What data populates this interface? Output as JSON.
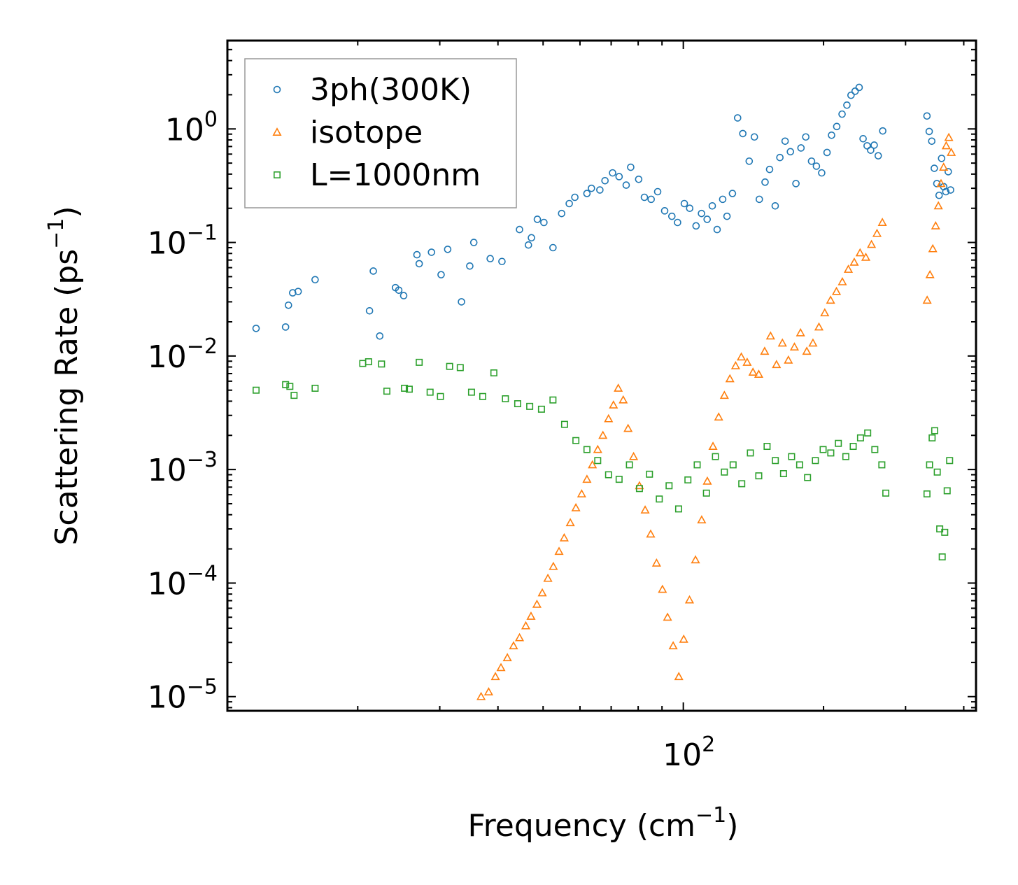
{
  "chart_data": {
    "type": "scatter",
    "title": "",
    "xlabel": "Frequency (cm⁻¹)",
    "xlabel_main": "Frequency (cm",
    "xlabel_sup": "−1",
    "xlabel_close": ")",
    "ylabel": "Scattering Rate (ps⁻¹)",
    "ylabel_main": "Scattering Rate (ps",
    "ylabel_sup": "−1",
    "ylabel_close": ")",
    "xscale": "log",
    "yscale": "log",
    "xlim": [
      10.5,
      425
    ],
    "ylim": [
      7.5e-06,
      6.0
    ],
    "x_ticks": [
      {
        "value": 100,
        "base": "10",
        "exp": "2"
      }
    ],
    "y_ticks": [
      {
        "value": 1,
        "base": "10",
        "exp": "0"
      },
      {
        "value": 0.1,
        "base": "10",
        "exp": "−1"
      },
      {
        "value": 0.01,
        "base": "10",
        "exp": "−2"
      },
      {
        "value": 0.001,
        "base": "10",
        "exp": "−3"
      },
      {
        "value": 0.0001,
        "base": "10",
        "exp": "−4"
      },
      {
        "value": 1e-05,
        "base": "10",
        "exp": "−5"
      }
    ],
    "grid": false,
    "legend_position": "top-left",
    "series": [
      {
        "name": "3ph(300K)",
        "color": "#1f77b4",
        "marker": "circle",
        "x": [
          12.1,
          14.0,
          14.2,
          14.5,
          14.9,
          16.2,
          21.2,
          21.6,
          22.3,
          24.1,
          24.5,
          25.1,
          26.8,
          27.1,
          28.8,
          30.2,
          31.2,
          33.4,
          34.8,
          35.5,
          38.5,
          40.8,
          44.5,
          46.5,
          47.2,
          48.6,
          50.2,
          52.5,
          54.8,
          56.9,
          58.5,
          62.1,
          63.5,
          66.2,
          67.9,
          70.5,
          72.8,
          75.4,
          77.1,
          80.2,
          82.5,
          85.3,
          88.1,
          91.2,
          94.5,
          97.2,
          100.5,
          103.2,
          106.5,
          109.4,
          112.5,
          115.4,
          118.2,
          121.5,
          124.1,
          127.5,
          130.8,
          134.2,
          138.5,
          142.1,
          145.6,
          149.8,
          153.2,
          157.5,
          161.2,
          165.4,
          169.8,
          174.5,
          178.9,
          183.2,
          188.5,
          193.1,
          198.2,
          203.5,
          208.1,
          213.5,
          219.2,
          224.5,
          229.1,
          233.8,
          238.5,
          243.2,
          248.1,
          252.5,
          256.9,
          262.1,
          268.0,
          333.5,
          337.2,
          341.5,
          345.8,
          350.2,
          354.1,
          358.5,
          362.3,
          366.1,
          370.5,
          374.8
        ],
        "y": [
          0.0175,
          0.018,
          0.028,
          0.036,
          0.037,
          0.047,
          0.025,
          0.056,
          0.015,
          0.04,
          0.038,
          0.034,
          0.078,
          0.065,
          0.082,
          0.052,
          0.087,
          0.03,
          0.062,
          0.1,
          0.072,
          0.068,
          0.13,
          0.095,
          0.11,
          0.16,
          0.15,
          0.09,
          0.18,
          0.22,
          0.25,
          0.27,
          0.3,
          0.29,
          0.35,
          0.41,
          0.38,
          0.32,
          0.46,
          0.36,
          0.25,
          0.24,
          0.28,
          0.19,
          0.17,
          0.15,
          0.22,
          0.2,
          0.14,
          0.18,
          0.16,
          0.21,
          0.13,
          0.24,
          0.17,
          0.27,
          1.25,
          0.91,
          0.52,
          0.85,
          0.24,
          0.34,
          0.44,
          0.21,
          0.56,
          0.78,
          0.63,
          0.33,
          0.68,
          0.85,
          0.52,
          0.47,
          0.41,
          0.62,
          0.88,
          1.05,
          1.35,
          1.62,
          1.98,
          2.15,
          2.32,
          0.82,
          0.71,
          0.65,
          0.72,
          0.58,
          0.96,
          1.3,
          0.95,
          0.78,
          0.45,
          0.33,
          0.26,
          0.55,
          0.31,
          0.28,
          0.42,
          0.29
        ]
      },
      {
        "name": "isotope",
        "color": "#ff7f0e",
        "marker": "triangle",
        "x": [
          36.8,
          38.2,
          39.5,
          40.6,
          41.9,
          43.2,
          44.5,
          45.9,
          47.1,
          48.5,
          49.8,
          51.2,
          52.6,
          54.1,
          55.5,
          57.2,
          58.8,
          60.5,
          62.1,
          63.8,
          65.5,
          67.2,
          69.1,
          70.8,
          72.5,
          74.3,
          76.1,
          78.2,
          80.5,
          82.8,
          85.1,
          87.6,
          90.2,
          92.5,
          95.1,
          97.8,
          100.2,
          103.1,
          106.2,
          109.5,
          112.6,
          115.8,
          119.1,
          122.5,
          125.9,
          129.5,
          133.2,
          137.1,
          141.1,
          145.2,
          149.5,
          153.9,
          158.5,
          163.2,
          168.1,
          173.2,
          178.5,
          184.1,
          189.8,
          195.5,
          201.2,
          207.1,
          213.2,
          219.5,
          226.1,
          232.8,
          239.6,
          246.5,
          253.5,
          260.5,
          267.5,
          333.8,
          338.5,
          343.2,
          348.1,
          352.8,
          357.5,
          362.1,
          366.8,
          371.5,
          376.1
        ],
        "y": [
          1e-05,
          1.1e-05,
          1.5e-05,
          1.8e-05,
          2.2e-05,
          2.8e-05,
          3.3e-05,
          4.2e-05,
          5.1e-05,
          6.5e-05,
          8.2e-05,
          0.00011,
          0.00014,
          0.00019,
          0.00025,
          0.00034,
          0.00046,
          0.00061,
          0.00082,
          0.0011,
          0.0015,
          0.002,
          0.0028,
          0.0037,
          0.0052,
          0.0041,
          0.0023,
          0.0013,
          0.00072,
          0.00044,
          0.00027,
          0.00015,
          8.8e-05,
          5e-05,
          2.8e-05,
          1.5e-05,
          3.2e-05,
          7.1e-05,
          0.00016,
          0.00036,
          0.00079,
          0.0016,
          0.0029,
          0.0045,
          0.0063,
          0.0082,
          0.0098,
          0.0088,
          0.0072,
          0.0069,
          0.011,
          0.015,
          0.0084,
          0.013,
          0.0092,
          0.012,
          0.016,
          0.011,
          0.013,
          0.018,
          0.024,
          0.031,
          0.037,
          0.045,
          0.058,
          0.067,
          0.081,
          0.074,
          0.096,
          0.12,
          0.15,
          0.031,
          0.052,
          0.088,
          0.14,
          0.21,
          0.33,
          0.46,
          0.71,
          0.84,
          0.62
        ]
      },
      {
        "name": "L=1000nm",
        "color": "#2ca02c",
        "marker": "square",
        "x": [
          12.1,
          14.0,
          14.3,
          14.6,
          16.2,
          20.5,
          21.1,
          22.5,
          23.1,
          25.2,
          25.8,
          27.1,
          28.6,
          30.1,
          31.5,
          33.2,
          35.1,
          37.1,
          39.2,
          41.5,
          44.1,
          46.8,
          49.6,
          52.5,
          55.6,
          58.8,
          62.1,
          65.5,
          69.1,
          72.8,
          76.6,
          80.5,
          84.6,
          88.8,
          93.2,
          97.7,
          102.3,
          107.1,
          112.1,
          117.2,
          122.5,
          127.9,
          133.5,
          139.3,
          145.2,
          151.3,
          157.6,
          164.1,
          170.8,
          177.7,
          184.8,
          192.1,
          199.6,
          207.3,
          215.2,
          223.3,
          231.6,
          240.1,
          248.8,
          257.7,
          266.8,
          272.1,
          333.5,
          337.8,
          342.1,
          346.5,
          350.9,
          355.2,
          359.6,
          364.1,
          368.5,
          373.0
        ],
        "y": [
          0.005,
          0.0056,
          0.0054,
          0.0045,
          0.0052,
          0.0086,
          0.0089,
          0.0085,
          0.0049,
          0.0052,
          0.0051,
          0.0088,
          0.0048,
          0.0044,
          0.0081,
          0.0079,
          0.0048,
          0.0044,
          0.0071,
          0.0042,
          0.0038,
          0.0036,
          0.0034,
          0.0041,
          0.0025,
          0.0018,
          0.0015,
          0.0012,
          0.0009,
          0.00082,
          0.0011,
          0.00068,
          0.00091,
          0.00055,
          0.00072,
          0.00045,
          0.00081,
          0.0011,
          0.00062,
          0.0013,
          0.00095,
          0.0011,
          0.00075,
          0.0014,
          0.00088,
          0.0016,
          0.0012,
          0.00092,
          0.0013,
          0.0011,
          0.00085,
          0.0012,
          0.0015,
          0.0014,
          0.0017,
          0.0013,
          0.0016,
          0.0019,
          0.0021,
          0.0015,
          0.0011,
          0.00062,
          0.00061,
          0.0011,
          0.0019,
          0.0022,
          0.00095,
          0.0003,
          0.00017,
          0.00028,
          0.00065,
          0.0012
        ]
      }
    ]
  }
}
